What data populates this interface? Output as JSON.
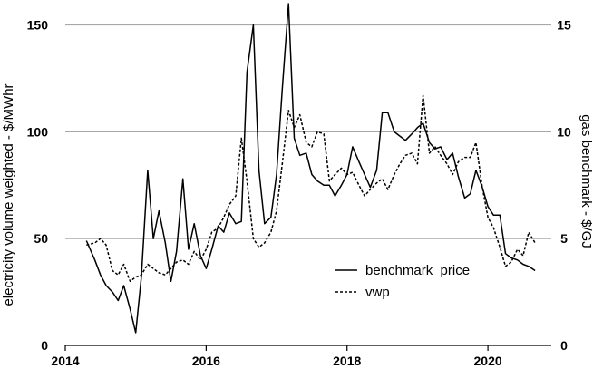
{
  "chart_data": {
    "type": "line",
    "left_axis_title": "electricity volume weighted - $/MWhr",
    "right_axis_title": "gas benchmark - $/GJ",
    "ylim_left": [
      0,
      160
    ],
    "ylim_right": [
      0,
      16
    ],
    "xlim": [
      2014.0,
      2020.9
    ],
    "left_ticks": [
      "0",
      "50",
      "100",
      "150"
    ],
    "left_tick_values": [
      0,
      50,
      100,
      150
    ],
    "right_ticks": [
      "0",
      "5",
      "10",
      "15"
    ],
    "right_tick_values": [
      0,
      5,
      10,
      15
    ],
    "x_ticks": [
      "2014",
      "2016",
      "2018",
      "2020"
    ],
    "x_tick_values": [
      2014,
      2016,
      2018,
      2020
    ],
    "grid": "horizontal",
    "legend_position": "lower-right",
    "series": [
      {
        "name": "benchmark_price",
        "axis": "left",
        "style": "solid",
        "color": "#000000",
        "x": [
          2014.3,
          2014.42,
          2014.5,
          2014.58,
          2014.67,
          2014.75,
          2014.83,
          2014.92,
          2015.0,
          2015.08,
          2015.17,
          2015.25,
          2015.33,
          2015.42,
          2015.5,
          2015.58,
          2015.67,
          2015.75,
          2015.83,
          2015.92,
          2016.0,
          2016.08,
          2016.17,
          2016.25,
          2016.33,
          2016.42,
          2016.5,
          2016.58,
          2016.67,
          2016.75,
          2016.83,
          2016.92,
          2017.0,
          2017.08,
          2017.17,
          2017.25,
          2017.33,
          2017.42,
          2017.5,
          2017.58,
          2017.67,
          2017.75,
          2017.83,
          2017.92,
          2018.0,
          2018.08,
          2018.17,
          2018.25,
          2018.33,
          2018.42,
          2018.5,
          2018.58,
          2018.67,
          2018.75,
          2018.83,
          2018.92,
          2019.0,
          2019.08,
          2019.17,
          2019.25,
          2019.33,
          2019.42,
          2019.5,
          2019.58,
          2019.67,
          2019.75,
          2019.83,
          2019.92,
          2020.0,
          2020.08,
          2020.17,
          2020.25,
          2020.33,
          2020.42,
          2020.5,
          2020.58,
          2020.67
        ],
        "values": [
          49,
          40,
          33,
          28,
          25,
          21,
          28,
          17,
          6,
          32,
          82,
          50,
          63,
          48,
          30,
          44,
          78,
          45,
          57,
          42,
          36,
          45,
          56,
          53,
          62,
          57,
          58,
          128,
          150,
          82,
          57,
          60,
          80,
          120,
          160,
          97,
          89,
          90,
          80,
          77,
          75,
          75,
          70,
          75,
          80,
          93,
          86,
          80,
          74,
          82,
          109,
          109,
          100,
          98,
          96,
          99,
          102,
          104,
          95,
          92,
          93,
          87,
          90,
          79,
          69,
          71,
          82,
          74,
          65,
          61,
          61,
          43,
          41,
          40,
          38,
          37,
          35
        ]
      },
      {
        "name": "vwp",
        "axis": "right",
        "style": "dashed",
        "color": "#000000",
        "x": [
          2014.3,
          2014.42,
          2014.5,
          2014.58,
          2014.67,
          2014.75,
          2014.83,
          2014.92,
          2015.0,
          2015.08,
          2015.17,
          2015.25,
          2015.33,
          2015.42,
          2015.5,
          2015.58,
          2015.67,
          2015.75,
          2015.83,
          2015.92,
          2016.0,
          2016.08,
          2016.17,
          2016.25,
          2016.33,
          2016.42,
          2016.5,
          2016.58,
          2016.67,
          2016.75,
          2016.83,
          2016.92,
          2017.0,
          2017.08,
          2017.17,
          2017.25,
          2017.33,
          2017.42,
          2017.5,
          2017.58,
          2017.67,
          2017.75,
          2017.83,
          2017.92,
          2018.0,
          2018.08,
          2018.17,
          2018.25,
          2018.33,
          2018.42,
          2018.5,
          2018.58,
          2018.67,
          2018.75,
          2018.83,
          2018.92,
          2019.0,
          2019.08,
          2019.17,
          2019.25,
          2019.33,
          2019.42,
          2019.5,
          2019.58,
          2019.67,
          2019.75,
          2019.83,
          2019.92,
          2020.0,
          2020.08,
          2020.17,
          2020.25,
          2020.33,
          2020.42,
          2020.5,
          2020.58,
          2020.67
        ],
        "values": [
          4.7,
          4.8,
          5.0,
          4.7,
          3.5,
          3.3,
          3.8,
          3.0,
          3.2,
          3.3,
          3.8,
          3.6,
          3.4,
          3.3,
          3.6,
          3.9,
          4.0,
          3.8,
          4.4,
          4.0,
          4.5,
          5.3,
          5.5,
          6.0,
          6.6,
          7.0,
          9.7,
          7.7,
          5.0,
          4.6,
          4.8,
          5.3,
          6.3,
          8.5,
          11.0,
          10.2,
          10.8,
          9.5,
          9.3,
          10.0,
          9.9,
          7.7,
          8.0,
          8.3,
          8.0,
          8.1,
          7.5,
          7.0,
          7.3,
          7.6,
          7.8,
          7.3,
          8.0,
          8.5,
          8.9,
          9.0,
          8.5,
          11.7,
          9.0,
          9.3,
          8.9,
          8.5,
          8.0,
          8.6,
          8.8,
          8.8,
          9.5,
          7.4,
          6.0,
          5.5,
          4.6,
          3.7,
          3.9,
          4.5,
          4.2,
          5.3,
          4.8
        ]
      }
    ]
  }
}
